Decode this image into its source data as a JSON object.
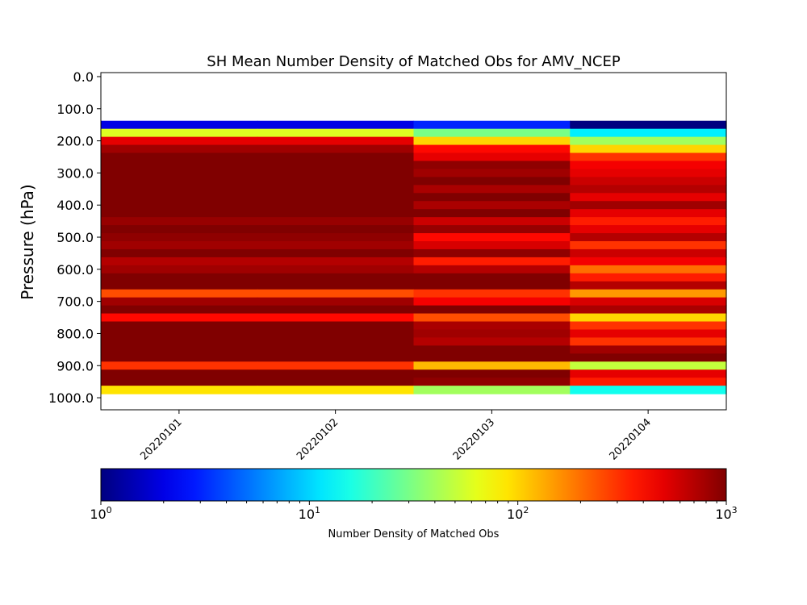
{
  "chart_data": {
    "type": "heatmap",
    "title": "SH Mean Number Density of Matched Obs for AMV_NCEP",
    "xlabel": "",
    "ylabel": "Pressure (hPa)",
    "x_categories": [
      "20220101",
      "20220102",
      "20220103",
      "20220104"
    ],
    "y_ticks": [
      "0.0",
      "100.0",
      "200.0",
      "300.0",
      "400.0",
      "500.0",
      "600.0",
      "700.0",
      "800.0",
      "900.0",
      "1000.0"
    ],
    "ylim": [
      1037.5,
      -12.5
    ],
    "y_axis_inverted": true,
    "level_step_hPa": 25,
    "level_edges_hPa": [
      137.5,
      162.5,
      187.5,
      212.5,
      237.5,
      262.5,
      287.5,
      312.5,
      337.5,
      362.5,
      387.5,
      412.5,
      437.5,
      462.5,
      487.5,
      512.5,
      537.5,
      562.5,
      587.5,
      612.5,
      637.5,
      662.5,
      687.5,
      712.5,
      737.5,
      762.5,
      787.5,
      812.5,
      837.5,
      862.5,
      887.5,
      912.5,
      937.5,
      962.5,
      987.5
    ],
    "color_scale": {
      "type": "log",
      "min": 1,
      "max": 1000,
      "colormap": "jet",
      "label": "Number Density of Matched Obs",
      "ticks": [
        {
          "base": "10",
          "exp": "0"
        },
        {
          "base": "10",
          "exp": "1"
        },
        {
          "base": "10",
          "exp": "2"
        },
        {
          "base": "10",
          "exp": "3"
        }
      ]
    },
    "cell_values": [
      [
        2,
        2,
        3,
        1
      ],
      [
        60,
        60,
        30,
        12
      ],
      [
        500,
        500,
        100,
        40
      ],
      [
        800,
        800,
        400,
        100
      ],
      [
        1000,
        1000,
        500,
        300
      ],
      [
        1000,
        1000,
        900,
        450
      ],
      [
        1000,
        1000,
        800,
        500
      ],
      [
        1000,
        1000,
        1000,
        600
      ],
      [
        1000,
        1000,
        750,
        700
      ],
      [
        1000,
        1000,
        1000,
        500
      ],
      [
        1000,
        1000,
        750,
        800
      ],
      [
        1000,
        1000,
        1000,
        500
      ],
      [
        850,
        850,
        600,
        350
      ],
      [
        1000,
        1000,
        850,
        500
      ],
      [
        900,
        900,
        400,
        700
      ],
      [
        800,
        800,
        550,
        300
      ],
      [
        1000,
        1000,
        900,
        600
      ],
      [
        700,
        700,
        350,
        450
      ],
      [
        800,
        800,
        700,
        200
      ],
      [
        1000,
        1000,
        1000,
        350
      ],
      [
        1000,
        1000,
        1000,
        700
      ],
      [
        250,
        250,
        300,
        150
      ],
      [
        800,
        800,
        450,
        550
      ],
      [
        1000,
        1000,
        1000,
        750
      ],
      [
        400,
        400,
        250,
        100
      ],
      [
        1000,
        1000,
        750,
        300
      ],
      [
        1000,
        1000,
        800,
        500
      ],
      [
        1000,
        1000,
        700,
        300
      ],
      [
        1000,
        1000,
        1000,
        800
      ],
      [
        1000,
        1000,
        1000,
        1000
      ],
      [
        300,
        300,
        120,
        50
      ],
      [
        1000,
        1000,
        1000,
        500
      ],
      [
        1000,
        1000,
        900,
        350
      ],
      [
        90,
        90,
        40,
        15
      ]
    ]
  }
}
